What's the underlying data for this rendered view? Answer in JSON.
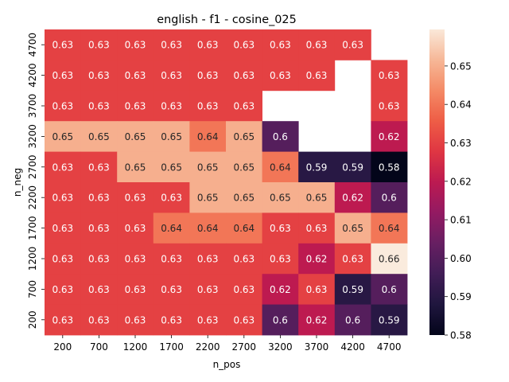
{
  "chart_data": {
    "type": "heatmap",
    "title": "english - f1 - cosine_025",
    "xlabel": "n_pos",
    "ylabel": "n_neg",
    "x_categories": [
      "200",
      "700",
      "1200",
      "1700",
      "2200",
      "2700",
      "3200",
      "3700",
      "4200",
      "4700"
    ],
    "y_categories": [
      "4700",
      "4200",
      "3700",
      "3200",
      "2700",
      "2200",
      "1700",
      "1200",
      "700",
      "200"
    ],
    "values": [
      [
        0.63,
        0.63,
        0.63,
        0.63,
        0.63,
        0.63,
        0.63,
        0.63,
        0.63,
        null
      ],
      [
        0.63,
        0.63,
        0.63,
        0.63,
        0.63,
        0.63,
        0.63,
        0.63,
        null,
        0.63
      ],
      [
        0.63,
        0.63,
        0.63,
        0.63,
        0.63,
        0.63,
        null,
        null,
        null,
        0.63
      ],
      [
        0.65,
        0.65,
        0.65,
        0.65,
        0.64,
        0.65,
        0.6,
        null,
        null,
        0.62
      ],
      [
        0.63,
        0.63,
        0.65,
        0.65,
        0.65,
        0.65,
        0.64,
        0.59,
        0.59,
        0.58
      ],
      [
        0.63,
        0.63,
        0.63,
        0.63,
        0.65,
        0.65,
        0.65,
        0.65,
        0.62,
        0.6
      ],
      [
        0.63,
        0.63,
        0.63,
        0.64,
        0.64,
        0.64,
        0.63,
        0.63,
        0.65,
        0.64
      ],
      [
        0.63,
        0.63,
        0.63,
        0.63,
        0.63,
        0.63,
        0.63,
        0.62,
        0.63,
        0.66
      ],
      [
        0.63,
        0.63,
        0.63,
        0.63,
        0.63,
        0.63,
        0.62,
        0.63,
        0.59,
        0.6
      ],
      [
        0.63,
        0.63,
        0.63,
        0.63,
        0.63,
        0.63,
        0.6,
        0.62,
        0.6,
        0.59
      ]
    ],
    "colorbar": {
      "range": [
        0.58,
        0.66
      ],
      "ticks": [
        0.58,
        0.59,
        0.6,
        0.61,
        0.62,
        0.63,
        0.64,
        0.65
      ],
      "tick_labels": [
        "0.58",
        "0.59",
        "0.60",
        "0.61",
        "0.62",
        "0.63",
        "0.64",
        "0.65"
      ],
      "colormap": "rocket"
    }
  }
}
